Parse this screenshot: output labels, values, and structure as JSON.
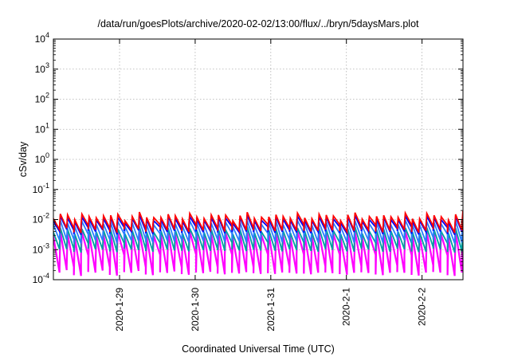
{
  "chart_data": {
    "type": "line",
    "title": "/data/run/goesPlots/archive/2020-02-02/13:00/flux/../bryn/5daysMars.plot",
    "xlabel": "Coordinated Universal Time (UTC)",
    "ylabel": "cSv/day",
    "x_scale": "time",
    "y_scale": "log",
    "xlim": [
      "2020-01-28 03:00",
      "2020-02-02 13:00"
    ],
    "ylim": [
      0.0001,
      10000
    ],
    "x_ticks": [
      {
        "value": "2020-01-29",
        "label": "2020-1-29"
      },
      {
        "value": "2020-01-30",
        "label": "2020-1-30"
      },
      {
        "value": "2020-01-31",
        "label": "2020-1-31"
      },
      {
        "value": "2020-02-01",
        "label": "2020-2-1"
      },
      {
        "value": "2020-02-02",
        "label": "2020-2-2"
      }
    ],
    "y_ticks": [
      {
        "exp": "-4",
        "value": 0.0001
      },
      {
        "exp": "-3",
        "value": 0.001
      },
      {
        "exp": "-2",
        "value": 0.01
      },
      {
        "exp": "-1",
        "value": 0.1
      },
      {
        "exp": "0",
        "value": 1
      },
      {
        "exp": "1",
        "value": 10
      },
      {
        "exp": "2",
        "value": 100
      },
      {
        "exp": "3",
        "value": 1000
      },
      {
        "exp": "4",
        "value": 10000
      }
    ],
    "tick_base": "10",
    "grid": true,
    "legend": "none",
    "pattern": "sawtooth, rapid rise then decay, repeating about every 2.2 hours",
    "cycles": 57,
    "series": [
      {
        "color": "#ff0000",
        "values_start": [
          0.006,
          0.011,
          0.004,
          0.013,
          0.005,
          0.015,
          0.006,
          0.012,
          0.004,
          0.014
        ],
        "description": "peaks ~1e-2 to 2e-2, troughs ~3e-3"
      },
      {
        "color": "#0000ff",
        "values_start": [
          0.005,
          0.009,
          0.0035,
          0.011,
          0.0045,
          0.012,
          0.005,
          0.01,
          0.0035,
          0.011
        ],
        "description": "peaks ~9e-3 to 1.3e-2, troughs ~2.5e-3"
      },
      {
        "color": "#2a7fff",
        "values_start": [
          0.003,
          0.007,
          0.0018,
          0.008,
          0.002,
          0.008,
          0.0025,
          0.007,
          0.0018,
          0.008
        ],
        "description": "peaks ~7e-3, troughs ~1e-3"
      },
      {
        "color": "#00a0a0",
        "values_start": [
          0.0015,
          0.004,
          0.0009,
          0.0045,
          0.001,
          0.005,
          0.0012,
          0.004,
          0.0009,
          0.0045
        ],
        "description": "peaks ~4e-3, troughs ~6e-4"
      },
      {
        "color": "#ff00ff",
        "values_start": [
          0.0006,
          0.003,
          0.00015,
          0.0035,
          0.0002,
          0.0035,
          0.0003,
          0.003,
          0.00015,
          0.0035
        ],
        "description": "peaks ~3e-3, troughs ~1e-4"
      }
    ]
  }
}
